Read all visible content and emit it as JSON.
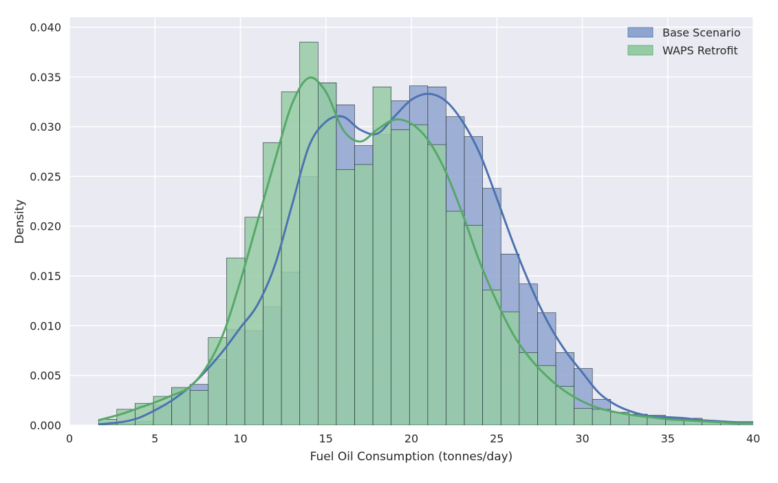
{
  "chart_data": {
    "type": "histogram",
    "xlabel": "Fuel Oil Consumption (tonnes/day)",
    "ylabel": "Density",
    "xlim": [
      0,
      40
    ],
    "ylim": [
      0,
      0.041
    ],
    "xticks": [
      "0",
      "5",
      "10",
      "15",
      "20",
      "25",
      "30",
      "35",
      "40"
    ],
    "yticks": [
      "0.000",
      "0.005",
      "0.010",
      "0.015",
      "0.020",
      "0.025",
      "0.030",
      "0.035",
      "0.040"
    ],
    "grid": true,
    "legend_position": "top-right",
    "bin_edges": [
      1.7,
      2.77,
      3.84,
      4.91,
      5.98,
      7.05,
      8.12,
      9.19,
      10.26,
      11.33,
      12.4,
      13.47,
      14.54,
      15.61,
      16.68,
      17.75,
      18.82,
      19.89,
      20.96,
      22.03,
      23.1,
      24.17,
      25.24,
      26.31,
      27.38,
      28.45,
      29.52,
      30.59,
      31.66,
      32.73,
      33.8,
      34.87,
      35.94,
      37.01,
      38.08,
      39.15,
      40.22
    ],
    "series": [
      {
        "name": "Base Scenario",
        "color": "#4c72b0",
        "fill": "#8fa5cf",
        "values": [
          0.0001,
          0.0002,
          0.0004,
          0.002,
          0.0037,
          0.0041,
          0.0066,
          0.0096,
          0.0095,
          0.0119,
          0.0154,
          0.025,
          0.0344,
          0.0322,
          0.0281,
          0.0292,
          0.0326,
          0.0341,
          0.034,
          0.031,
          0.029,
          0.0238,
          0.0172,
          0.0142,
          0.0113,
          0.0073,
          0.0057,
          0.0026,
          0.0013,
          0.0011,
          0.001,
          0.0007,
          0.0007,
          0.0004,
          0.0003,
          0.0002
        ],
        "kde_x": [
          1.7,
          3,
          4,
          5,
          6,
          7,
          8,
          9,
          10,
          11,
          12,
          13,
          14,
          15,
          16,
          17,
          18,
          19,
          20,
          21,
          22,
          23,
          24,
          25,
          26,
          27,
          28,
          29,
          30,
          31,
          32,
          33,
          34,
          35,
          36,
          37,
          38,
          39,
          40
        ],
        "kde_y": [
          0.0001,
          0.0003,
          0.0007,
          0.0015,
          0.0025,
          0.0038,
          0.0055,
          0.0075,
          0.0098,
          0.0121,
          0.016,
          0.022,
          0.028,
          0.0305,
          0.031,
          0.0297,
          0.0293,
          0.031,
          0.0327,
          0.0333,
          0.0326,
          0.0305,
          0.0273,
          0.0228,
          0.0181,
          0.0139,
          0.0103,
          0.0075,
          0.0053,
          0.0032,
          0.002,
          0.0013,
          0.0009,
          0.0008,
          0.0007,
          0.0005,
          0.0004,
          0.0003,
          0.0003
        ]
      },
      {
        "name": "WAPS Retrofit",
        "color": "#55a868",
        "fill": "#97cba4",
        "values": [
          0.0006,
          0.0016,
          0.0022,
          0.0029,
          0.0038,
          0.0035,
          0.0088,
          0.0168,
          0.0209,
          0.0284,
          0.0335,
          0.0385,
          0.0344,
          0.0257,
          0.0262,
          0.034,
          0.0297,
          0.0302,
          0.0282,
          0.0215,
          0.0201,
          0.0136,
          0.0114,
          0.0073,
          0.006,
          0.0039,
          0.0017,
          0.0016,
          0.0013,
          0.0011,
          0.0009,
          0.0006,
          0.0005,
          0.0004,
          0.0003,
          0.0002
        ],
        "kde_x": [
          1.7,
          3,
          4,
          5,
          6,
          7,
          8,
          9,
          10,
          11,
          12,
          13,
          14,
          15,
          16,
          17,
          18,
          19,
          20,
          21,
          22,
          23,
          24,
          25,
          26,
          27,
          28,
          29,
          30,
          31,
          32,
          33,
          34,
          35,
          36,
          37,
          38,
          39,
          40
        ],
        "kde_y": [
          0.0005,
          0.0011,
          0.0017,
          0.0023,
          0.003,
          0.0038,
          0.0058,
          0.0092,
          0.0145,
          0.0205,
          0.0265,
          0.0322,
          0.0349,
          0.0335,
          0.0297,
          0.0285,
          0.0297,
          0.0307,
          0.0303,
          0.0286,
          0.0255,
          0.0212,
          0.0164,
          0.0124,
          0.009,
          0.0066,
          0.0048,
          0.0034,
          0.0024,
          0.0017,
          0.0013,
          0.001,
          0.0008,
          0.0006,
          0.0005,
          0.0004,
          0.0003,
          0.0002,
          0.0002
        ]
      }
    ]
  }
}
